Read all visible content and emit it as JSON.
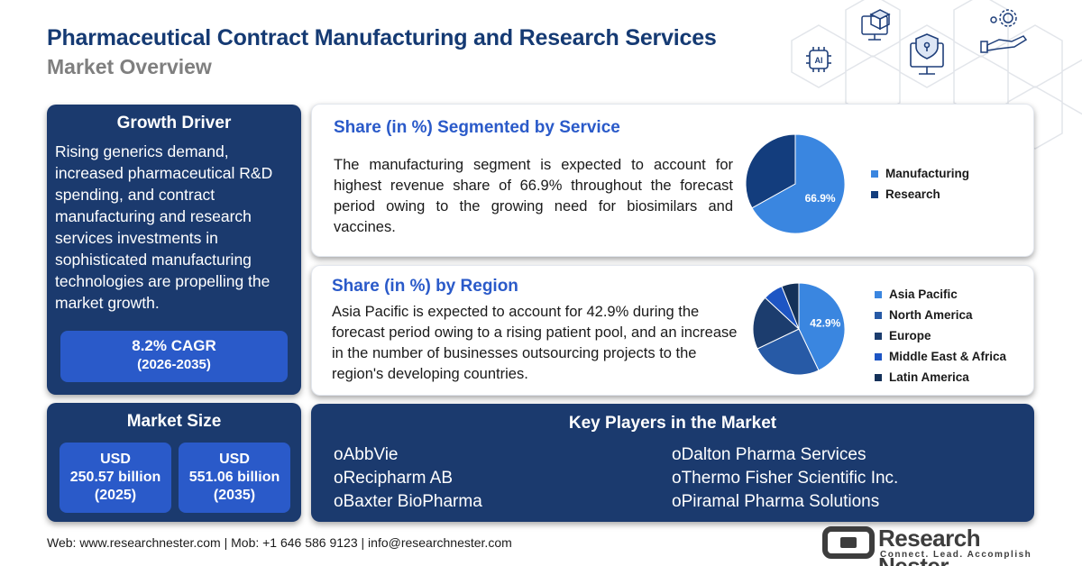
{
  "header": {
    "title": "Pharmaceutical Contract Manufacturing and Research Services",
    "subtitle": "Market Overview"
  },
  "decor_icons": [
    "ai-chip-icon",
    "3d-cube-monitor-icon",
    "security-shield-monitor-icon",
    "gear-hand-icon"
  ],
  "growth_driver": {
    "title": "Growth Driver",
    "text": "Rising generics demand, increased pharmaceutical R&D spending, and contract manufacturing and research services investments in sophisticated manufacturing technologies are propelling the market growth.",
    "cagr": "8.2% CAGR",
    "period": "(2026-2035)"
  },
  "market_size": {
    "title": "Market Size",
    "items": [
      {
        "currency": "USD",
        "value": "250.57 billion",
        "year": "(2025)"
      },
      {
        "currency": "USD",
        "value": "551.06 billion",
        "year": "(2035)"
      }
    ]
  },
  "service": {
    "title": "Share (in %) Segmented by Service",
    "text": "The manufacturing segment is expected to account for highest revenue share of 66.9% throughout the forecast period owing to the growing need for biosimilars and vaccines."
  },
  "region": {
    "title": "Share (in %) by Region",
    "text": "Asia Pacific is expected to account for 42.9% during the forecast period owing to a rising patient pool, and an increase in the number of businesses outsourcing projects to the region's developing countries."
  },
  "chart_data": [
    {
      "type": "pie",
      "categories": [
        "Manufacturing",
        "Research"
      ],
      "values": [
        66.9,
        33.1
      ],
      "labels": [
        "66.9%",
        ""
      ],
      "colors": [
        "#3a86e0",
        "#133d7d"
      ],
      "legend_position": "right"
    },
    {
      "type": "pie",
      "categories": [
        "Asia Pacific",
        "North America",
        "Europe",
        "Middle East & Africa",
        "Latin America"
      ],
      "values": [
        42.9,
        25.0,
        19.0,
        7.0,
        6.1
      ],
      "labels": [
        "42.9%",
        "",
        "",
        "",
        ""
      ],
      "colors": [
        "#3a86e0",
        "#275aa6",
        "#1c3d6e",
        "#1d55c4",
        "#143159"
      ],
      "legend_position": "right"
    }
  ],
  "key_players": {
    "title": "Key Players in the Market",
    "col1": [
      "AbbVie",
      "Recipharm AB",
      "Baxter BioPharma"
    ],
    "col2": [
      "Dalton Pharma Services",
      "Thermo Fisher Scientific Inc.",
      "Piramal Pharma Solutions"
    ],
    "bullet": "o"
  },
  "footer": {
    "contact": "Web: www.researchnester.com | Mob: +1 646 586 9123 | info@researchnester.com"
  },
  "brand": {
    "name": "Research Nester",
    "tagline": "Connect. Lead. Accomplish"
  }
}
